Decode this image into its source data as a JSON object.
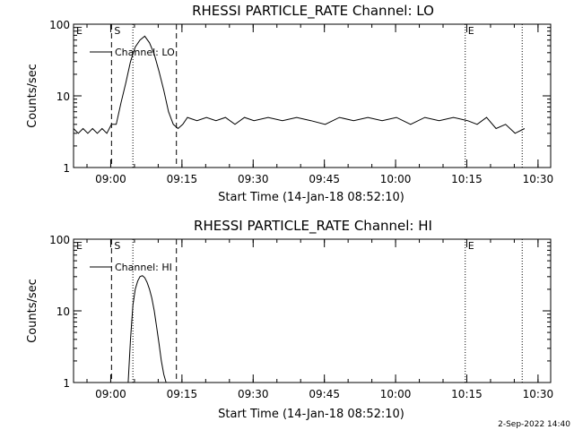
{
  "footer": {
    "date": "2-Sep-2022 14:40"
  },
  "chart_data": [
    {
      "type": "line",
      "title": "RHESSI PARTICLE_RATE Channel: LO",
      "xlabel": "Start Time (14-Jan-18 08:52:10)",
      "ylabel": "Counts/sec",
      "yscale": "log",
      "ylim": [
        1,
        100
      ],
      "xlim": [
        "08:52:10",
        "10:32:40"
      ],
      "x_ticks": [
        "09:00",
        "09:15",
        "09:30",
        "09:45",
        "10:00",
        "10:15",
        "10:30"
      ],
      "y_ticks": [
        "1",
        "10",
        "100"
      ],
      "legend": {
        "label": "Channel: LO",
        "position": "top-left"
      },
      "markers": [
        {
          "label": "E",
          "time": "08:52:10",
          "style": "dotted"
        },
        {
          "label": "S",
          "time": "09:00:10",
          "style": "dashed"
        },
        {
          "label": "",
          "time": "09:04:40",
          "style": "dotted"
        },
        {
          "label": "",
          "time": "09:13:50",
          "style": "dashed"
        },
        {
          "label": "E",
          "time": "10:14:40",
          "style": "dotted"
        },
        {
          "label": "",
          "time": "10:26:40",
          "style": "dotted"
        }
      ],
      "series": [
        {
          "name": "Channel: LO",
          "x": [
            "08:52:10",
            "08:53:10",
            "08:54:10",
            "08:55:10",
            "08:56:10",
            "08:57:10",
            "08:58:10",
            "08:59:10",
            "09:00:10",
            "09:01:10",
            "09:02:10",
            "09:03:10",
            "09:04:10",
            "09:05:10",
            "09:06:10",
            "09:07:10",
            "09:08:10",
            "09:09:10",
            "09:10:10",
            "09:11:10",
            "09:12:10",
            "09:13:10",
            "09:14:10",
            "09:15:10",
            "09:16:10",
            "09:18:10",
            "09:20:10",
            "09:22:10",
            "09:24:10",
            "09:26:10",
            "09:28:10",
            "09:30:10",
            "09:33:10",
            "09:36:10",
            "09:39:10",
            "09:42:10",
            "09:45:10",
            "09:48:10",
            "09:51:10",
            "09:54:10",
            "09:57:10",
            "10:00:10",
            "10:03:10",
            "10:06:10",
            "10:09:10",
            "10:12:10",
            "10:15:10",
            "10:17:10",
            "10:19:10",
            "10:21:10",
            "10:23:10",
            "10:25:10",
            "10:27:10"
          ],
          "values": [
            3.5,
            3.0,
            3.5,
            3.0,
            3.5,
            3.0,
            3.5,
            3.0,
            4.0,
            4.0,
            8,
            15,
            30,
            48,
            60,
            68,
            55,
            38,
            22,
            12,
            6,
            4.0,
            3.5,
            4.0,
            5.0,
            4.5,
            5.0,
            4.5,
            5.0,
            4.0,
            5.0,
            4.5,
            5.0,
            4.5,
            5.0,
            4.5,
            4.0,
            5.0,
            4.5,
            5.0,
            4.5,
            5.0,
            4.0,
            5.0,
            4.5,
            5.0,
            4.5,
            4.0,
            5.0,
            3.5,
            4.0,
            3.0,
            3.5
          ]
        }
      ]
    },
    {
      "type": "line",
      "title": "RHESSI PARTICLE_RATE Channel: HI",
      "xlabel": "Start Time (14-Jan-18 08:52:10)",
      "ylabel": "Counts/sec",
      "yscale": "log",
      "ylim": [
        1,
        100
      ],
      "xlim": [
        "08:52:10",
        "10:32:40"
      ],
      "x_ticks": [
        "09:00",
        "09:15",
        "09:30",
        "09:45",
        "10:00",
        "10:15",
        "10:30"
      ],
      "y_ticks": [
        "1",
        "10",
        "100"
      ],
      "legend": {
        "label": "Channel: HI",
        "position": "top-left"
      },
      "markers": [
        {
          "label": "E",
          "time": "08:52:10",
          "style": "dotted"
        },
        {
          "label": "S",
          "time": "09:00:10",
          "style": "dashed"
        },
        {
          "label": "",
          "time": "09:04:40",
          "style": "dotted"
        },
        {
          "label": "",
          "time": "09:13:50",
          "style": "dashed"
        },
        {
          "label": "E",
          "time": "10:14:40",
          "style": "dotted"
        },
        {
          "label": "",
          "time": "10:26:40",
          "style": "dotted"
        }
      ],
      "series": [
        {
          "name": "Channel: HI",
          "x": [
            "09:03:40",
            "09:04:10",
            "09:04:40",
            "09:05:10",
            "09:05:40",
            "09:06:10",
            "09:06:40",
            "09:07:10",
            "09:07:40",
            "09:08:10",
            "09:08:40",
            "09:09:10",
            "09:09:40",
            "09:10:10",
            "09:10:40",
            "09:11:10",
            "09:11:40"
          ],
          "values": [
            1.0,
            4,
            12,
            20,
            26,
            30,
            31,
            29,
            25,
            20,
            15,
            10,
            6,
            3.5,
            2.0,
            1.3,
            1.0
          ]
        }
      ]
    }
  ]
}
